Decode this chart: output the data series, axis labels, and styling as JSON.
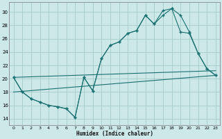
{
  "bg_color": "#cce8e8",
  "grid_color": "#aacfcf",
  "line_color": "#1a7070",
  "xlabel": "Humidex (Indice chaleur)",
  "xlim": [
    -0.5,
    23.5
  ],
  "ylim": [
    13.0,
    31.5
  ],
  "xticks": [
    0,
    1,
    2,
    3,
    4,
    5,
    6,
    7,
    8,
    9,
    10,
    11,
    12,
    13,
    14,
    15,
    16,
    17,
    18,
    19,
    20,
    21,
    22,
    23
  ],
  "yticks": [
    14,
    16,
    18,
    20,
    22,
    24,
    26,
    28,
    30
  ],
  "curve1_x": [
    0,
    1,
    2,
    3,
    4,
    5,
    6,
    7,
    8,
    9,
    10,
    11,
    12,
    13,
    14,
    15,
    16,
    17,
    18,
    19,
    20,
    21,
    22,
    23
  ],
  "curve1_y": [
    20.2,
    18.0,
    17.0,
    16.5,
    16.0,
    15.8,
    15.5,
    14.2,
    20.2,
    18.2,
    23.0,
    25.0,
    25.5,
    26.8,
    27.2,
    29.5,
    28.2,
    29.5,
    30.5,
    29.5,
    27.0,
    23.8,
    21.5,
    20.5
  ],
  "curve2_x": [
    0,
    1,
    2,
    3,
    4,
    5,
    6,
    7,
    8,
    9,
    10,
    11,
    12,
    13,
    14,
    15,
    16,
    17,
    18,
    19,
    20,
    21,
    22,
    23
  ],
  "curve2_y": [
    20.2,
    18.0,
    17.0,
    16.5,
    16.0,
    15.8,
    15.5,
    14.2,
    20.2,
    18.2,
    23.0,
    25.0,
    25.5,
    26.8,
    27.2,
    29.5,
    28.2,
    30.2,
    30.5,
    27.0,
    26.8,
    23.8,
    21.5,
    20.5
  ],
  "trend1_x": [
    0,
    23
  ],
  "trend1_y": [
    18.0,
    20.5
  ],
  "trend2_x": [
    0,
    23
  ],
  "trend2_y": [
    20.2,
    21.2
  ]
}
